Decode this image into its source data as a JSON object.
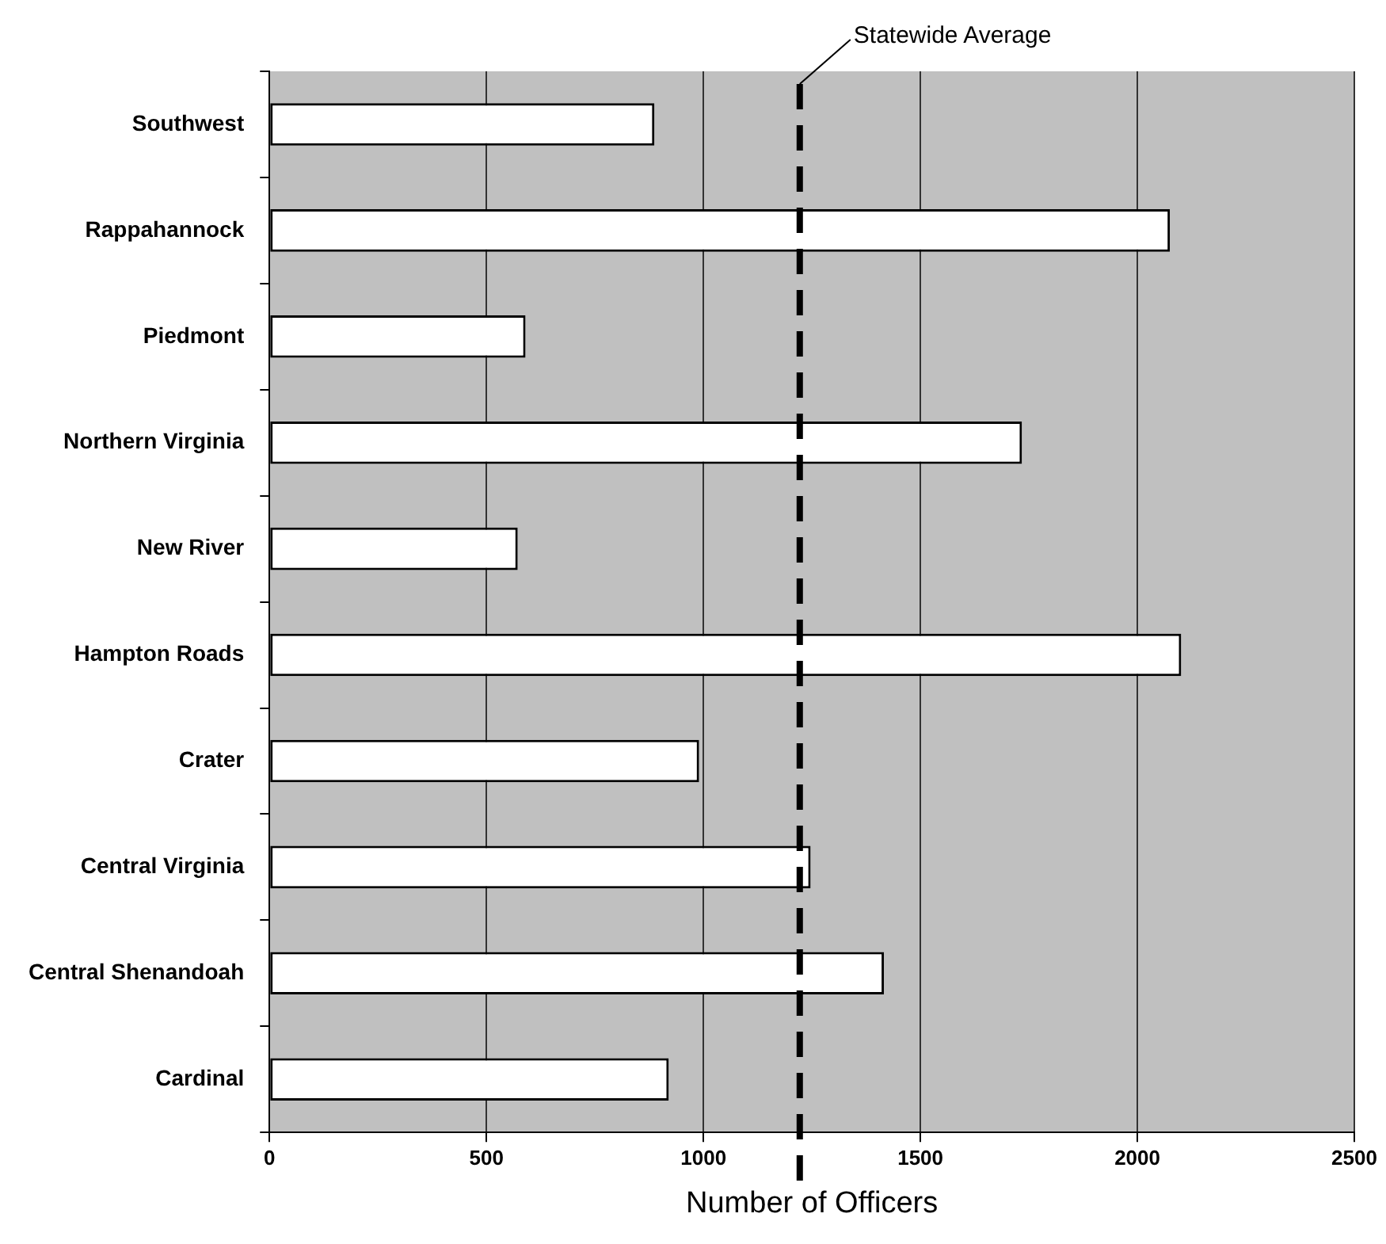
{
  "chart_data": {
    "type": "bar",
    "orientation": "horizontal",
    "xlabel": "Number of Officers",
    "categories": [
      "Southwest",
      "Rappahannock",
      "Piedmont",
      "Northern Virginia",
      "New River",
      "Hampton Roads",
      "Crater",
      "Central Virginia",
      "Central Shenandoah",
      "Cardinal"
    ],
    "values": [
      887,
      2075,
      590,
      1734,
      572,
      2101,
      990,
      1247,
      1416,
      920
    ],
    "color": "#ffffff",
    "xlim": [
      0,
      2500
    ],
    "xticks": [
      0,
      500,
      1000,
      1500,
      2000,
      2500
    ],
    "grid": "x",
    "ref_lines": [
      {
        "axis": "x",
        "value": 1222,
        "label": "Statewide Average",
        "color": "#000000",
        "line_style": "dashed"
      }
    ]
  }
}
